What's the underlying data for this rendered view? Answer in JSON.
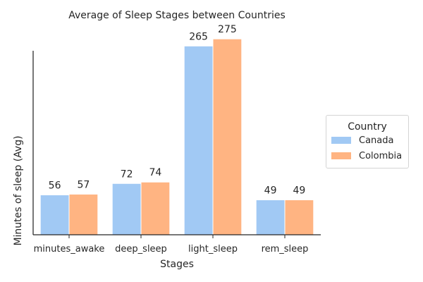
{
  "chart_data": {
    "type": "bar",
    "title": "Average of Sleep Stages between Countries",
    "xlabel": "Stages",
    "ylabel": "Minutes of sleep (Avg)",
    "categories": [
      "minutes_awake",
      "deep_sleep",
      "light_sleep",
      "rem_sleep"
    ],
    "series": [
      {
        "name": "Canada",
        "values": [
          56,
          72,
          265,
          49
        ],
        "color": "#a1c9f4"
      },
      {
        "name": "Colombia",
        "values": [
          57,
          74,
          275,
          49
        ],
        "color": "#ffb482"
      }
    ],
    "ylim": [
      0,
      290
    ],
    "grid": false,
    "legend": {
      "title": "Country",
      "placement": "center-right, outside"
    }
  }
}
